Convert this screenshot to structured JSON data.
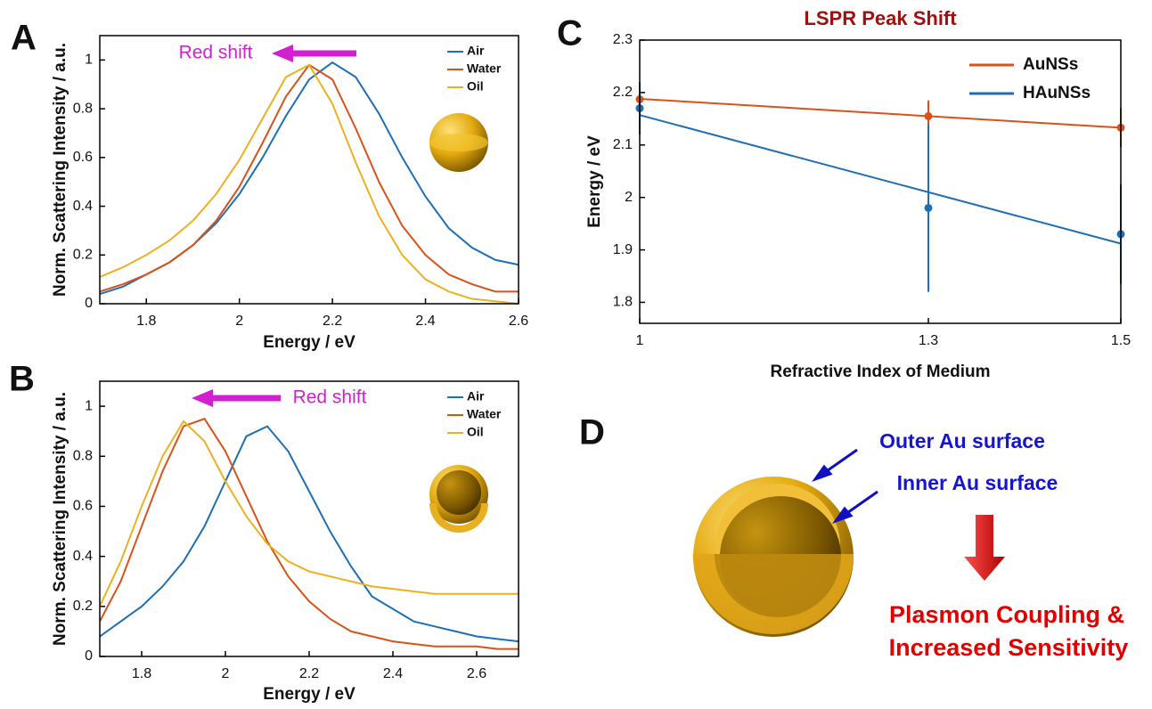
{
  "chart_data": [
    {
      "type": "line",
      "panel": "A",
      "xlabel": "Energy / eV",
      "ylabel": "Norm. Scattering Intensity / a.u.",
      "x": [
        1.7,
        1.75,
        1.8,
        1.85,
        1.9,
        1.95,
        2.0,
        2.05,
        2.1,
        2.15,
        2.2,
        2.25,
        2.3,
        2.35,
        2.4,
        2.45,
        2.5,
        2.55,
        2.6
      ],
      "series": [
        {
          "name": "Air",
          "color": "#1f6fb4",
          "values": [
            0.04,
            0.07,
            0.12,
            0.17,
            0.24,
            0.33,
            0.45,
            0.6,
            0.77,
            0.92,
            0.99,
            0.93,
            0.78,
            0.6,
            0.44,
            0.31,
            0.23,
            0.18,
            0.16
          ]
        },
        {
          "name": "Water",
          "color": "#d95319",
          "values": [
            0.05,
            0.08,
            0.12,
            0.17,
            0.24,
            0.34,
            0.48,
            0.66,
            0.85,
            0.98,
            0.92,
            0.72,
            0.5,
            0.32,
            0.2,
            0.12,
            0.08,
            0.05,
            0.05
          ]
        },
        {
          "name": "Oil",
          "color": "#edb120",
          "values": [
            0.11,
            0.15,
            0.2,
            0.26,
            0.34,
            0.45,
            0.59,
            0.76,
            0.93,
            0.98,
            0.82,
            0.58,
            0.36,
            0.2,
            0.1,
            0.05,
            0.02,
            0.01,
            0
          ]
        }
      ],
      "xlim": [
        1.7,
        2.6
      ],
      "ylim": [
        0,
        1.1
      ],
      "xticks": [
        1.8,
        2,
        2.2,
        2.4,
        2.6
      ],
      "yticks": [
        0,
        0.2,
        0.4,
        0.6,
        0.8,
        1
      ],
      "legend": "upper right",
      "annotation": "Red shift"
    },
    {
      "type": "line",
      "panel": "B",
      "xlabel": "Energy / eV",
      "ylabel": "Norm. Scattering Intensity / a.u.",
      "x": [
        1.7,
        1.75,
        1.8,
        1.85,
        1.9,
        1.95,
        2.0,
        2.05,
        2.1,
        2.15,
        2.2,
        2.25,
        2.3,
        2.35,
        2.4,
        2.45,
        2.5,
        2.55,
        2.6,
        2.65,
        2.7
      ],
      "series": [
        {
          "name": "Air",
          "color": "#1f6fb4",
          "values": [
            0.08,
            0.14,
            0.2,
            0.28,
            0.38,
            0.52,
            0.7,
            0.88,
            0.92,
            0.82,
            0.66,
            0.5,
            0.36,
            0.24,
            0.19,
            0.14,
            0.12,
            0.1,
            0.08,
            0.07,
            0.06
          ]
        },
        {
          "name": "Water",
          "color": "#d95319",
          "values": [
            0.14,
            0.3,
            0.52,
            0.74,
            0.92,
            0.95,
            0.82,
            0.64,
            0.46,
            0.32,
            0.22,
            0.15,
            0.1,
            0.08,
            0.06,
            0.05,
            0.04,
            0.04,
            0.04,
            0.03,
            0.03
          ]
        },
        {
          "name": "Oil",
          "color": "#edb120",
          "values": [
            0.2,
            0.38,
            0.6,
            0.8,
            0.94,
            0.86,
            0.7,
            0.56,
            0.45,
            0.38,
            0.34,
            0.32,
            0.3,
            0.28,
            0.27,
            0.26,
            0.25,
            0.25,
            0.25,
            0.25,
            0.25
          ]
        }
      ],
      "xlim": [
        1.7,
        2.7
      ],
      "ylim": [
        0,
        1.1
      ],
      "xticks": [
        1.8,
        2,
        2.2,
        2.4,
        2.6
      ],
      "yticks": [
        0,
        0.2,
        0.4,
        0.6,
        0.8,
        1
      ],
      "legend": "upper right",
      "annotation": "Red shift"
    },
    {
      "type": "errorbar",
      "panel": "C",
      "title": "LSPR Peak Shift",
      "xlabel": "Refractive Index of Medium",
      "ylabel": "Energy / eV",
      "x": [
        1,
        1.3,
        1.5
      ],
      "series": [
        {
          "name": "AuNSs",
          "color": "#d95319",
          "values": [
            2.187,
            2.155,
            2.133
          ],
          "errors": [
            0.025,
            0.03,
            0.037
          ],
          "fit": [
            2.188,
            2.133
          ]
        },
        {
          "name": "HAuNSs",
          "color": "#1f6fb4",
          "values": [
            2.17,
            1.98,
            1.93
          ],
          "errors": [
            0.05,
            0.16,
            0.095
          ],
          "fit": [
            2.157,
            1.912
          ]
        }
      ],
      "xlim": [
        1,
        1.5
      ],
      "ylim": [
        1.76,
        2.3
      ],
      "xticks": [
        1,
        1.3,
        1.5
      ],
      "yticks": [
        1.8,
        1.9,
        2,
        2.1,
        2.2,
        2.3
      ],
      "legend": "upper right"
    }
  ],
  "diagram": {
    "panel": "D",
    "outer_label": "Outer Au surface",
    "inner_label": "Inner Au surface",
    "conclusion": [
      "Plasmon Coupling &",
      "Increased Sensitivity"
    ]
  }
}
